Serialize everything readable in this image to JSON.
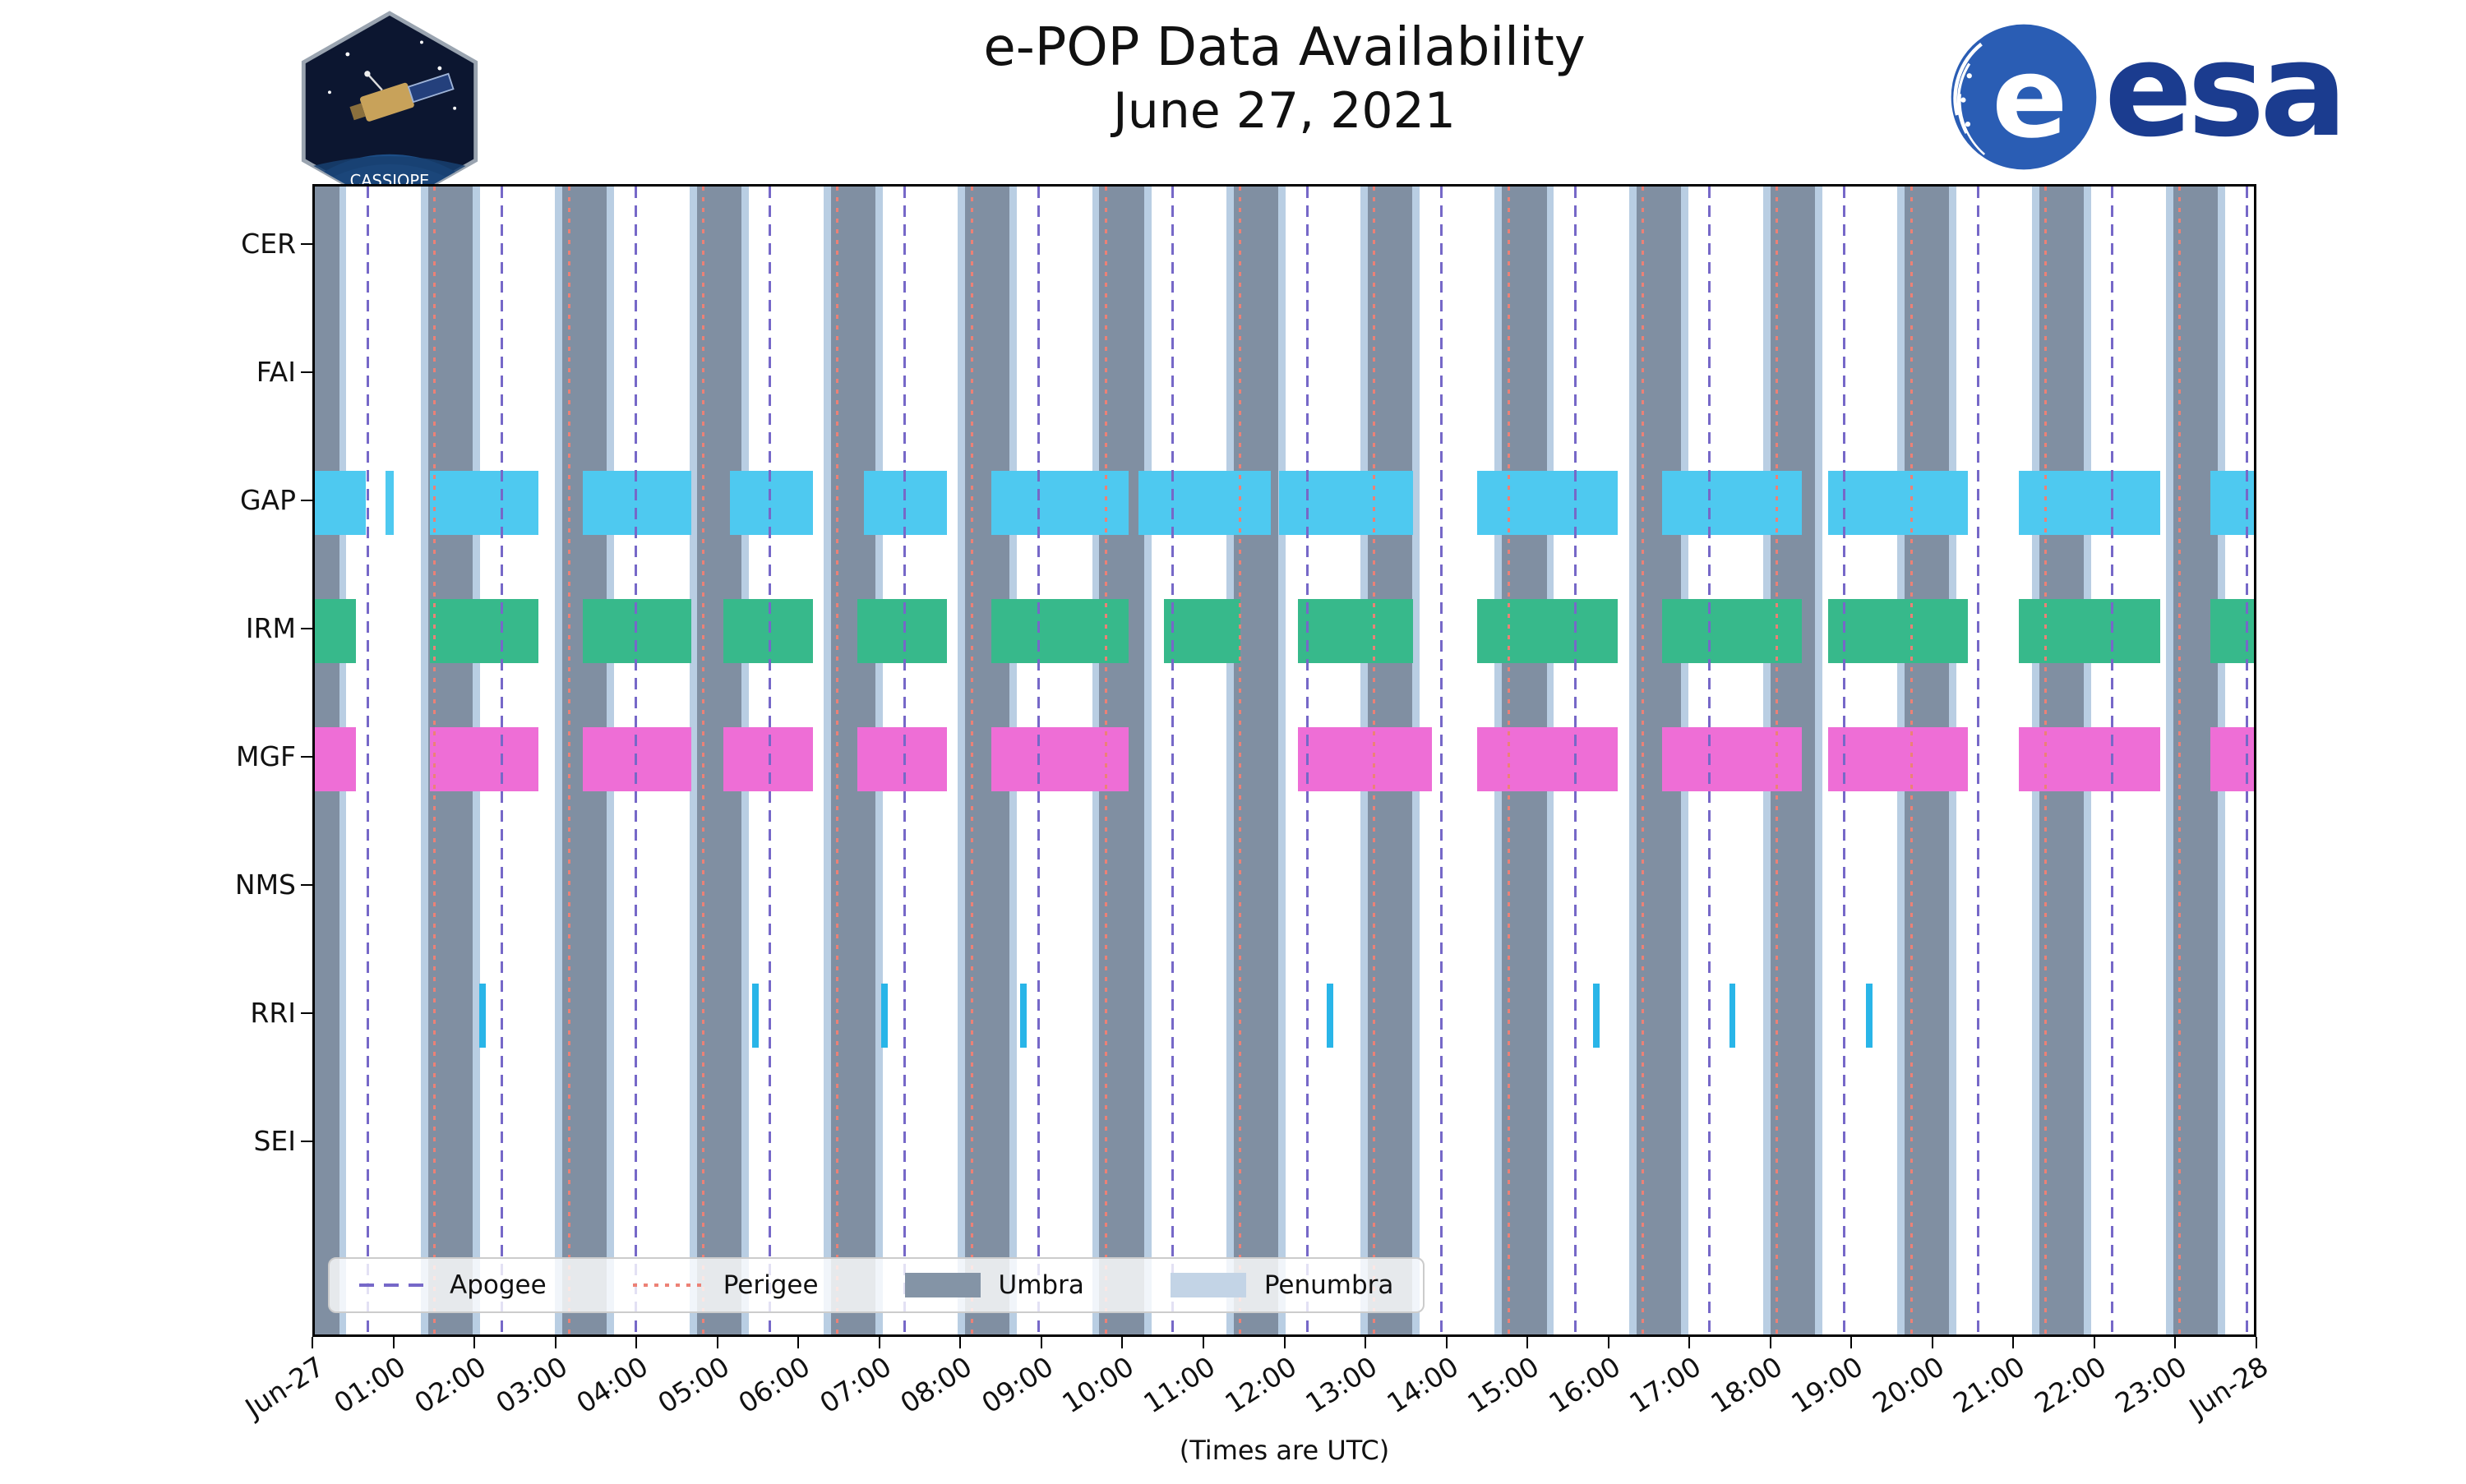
{
  "header": {
    "cassiope_text": "CASSIOPE",
    "esa_text": "esa",
    "esa_emblem_letter": "e"
  },
  "legend": [
    {
      "label": "Apogee",
      "swatch": "dashed-line",
      "color": "#7668c8"
    },
    {
      "label": "Perigee",
      "swatch": "dotted-line",
      "color": "#ec8176"
    },
    {
      "label": "Umbra",
      "swatch": "patch",
      "color": "#8494a6"
    },
    {
      "label": "Penumbra",
      "swatch": "patch",
      "color": "#c3d4e6"
    }
  ],
  "chart_data": {
    "type": "timeline",
    "title": "e-POP Data Availability",
    "subtitle": "June 27, 2021",
    "x_axis": {
      "label": "(Times are UTC)",
      "range_hours": [
        0,
        24
      ],
      "tick_labels": [
        "Jun-27",
        "01:00",
        "02:00",
        "03:00",
        "04:00",
        "05:00",
        "06:00",
        "07:00",
        "08:00",
        "09:00",
        "10:00",
        "11:00",
        "12:00",
        "13:00",
        "14:00",
        "15:00",
        "16:00",
        "17:00",
        "18:00",
        "19:00",
        "20:00",
        "21:00",
        "22:00",
        "23:00",
        "Jun-28"
      ]
    },
    "y_categories": [
      "CER",
      "FAI",
      "GAP",
      "IRM",
      "MGF",
      "NMS",
      "RRI",
      "SEI"
    ],
    "umbra_intervals_hours": [
      [
        0.0,
        0.3
      ],
      [
        1.4,
        1.95
      ],
      [
        3.057,
        3.607
      ],
      [
        4.714,
        5.264
      ],
      [
        6.371,
        6.921
      ],
      [
        8.029,
        8.579
      ],
      [
        9.686,
        10.236
      ],
      [
        11.343,
        11.893
      ],
      [
        13.0,
        13.55
      ],
      [
        14.657,
        15.207
      ],
      [
        16.314,
        16.864
      ],
      [
        17.971,
        18.521
      ],
      [
        19.629,
        20.179
      ],
      [
        21.286,
        21.836
      ],
      [
        22.943,
        23.493
      ]
    ],
    "penumbra_edge_width_hours": 0.09,
    "orbital_events": {
      "apogee_hours": [
        0.65,
        2.307,
        3.964,
        5.621,
        7.279,
        8.936,
        10.593,
        12.25,
        13.907,
        15.564,
        17.221,
        18.879,
        20.536,
        22.193,
        23.85
      ],
      "perigee_hours": [
        1.48,
        3.137,
        4.794,
        6.451,
        8.109,
        9.766,
        11.423,
        13.08,
        14.737,
        16.394,
        18.051,
        19.709,
        21.366,
        23.023
      ]
    },
    "availability_hours": {
      "CER": [],
      "FAI": [],
      "GAP": [
        [
          0.0,
          0.63
        ],
        [
          0.87,
          0.97
        ],
        [
          1.42,
          2.76
        ],
        [
          3.31,
          4.65
        ],
        [
          5.12,
          6.15
        ],
        [
          6.78,
          7.8
        ],
        [
          8.35,
          10.05
        ],
        [
          10.17,
          11.8
        ],
        [
          11.9,
          13.56
        ],
        [
          14.35,
          16.08
        ],
        [
          16.63,
          18.36
        ],
        [
          18.68,
          20.41
        ],
        [
          21.04,
          22.78
        ],
        [
          23.4,
          24.0
        ]
      ],
      "IRM": [
        [
          0.0,
          0.51
        ],
        [
          1.42,
          2.76
        ],
        [
          3.31,
          4.65
        ],
        [
          5.04,
          6.15
        ],
        [
          6.7,
          7.8
        ],
        [
          8.35,
          10.05
        ],
        [
          10.48,
          11.43
        ],
        [
          12.14,
          13.56
        ],
        [
          14.35,
          16.08
        ],
        [
          16.63,
          18.36
        ],
        [
          18.68,
          20.41
        ],
        [
          21.04,
          22.78
        ],
        [
          23.4,
          24.0
        ]
      ],
      "MGF": [
        [
          0.0,
          0.51
        ],
        [
          1.42,
          2.76
        ],
        [
          3.31,
          4.65
        ],
        [
          5.04,
          6.15
        ],
        [
          6.7,
          7.8
        ],
        [
          8.35,
          10.05
        ],
        [
          12.14,
          13.79
        ],
        [
          14.35,
          16.08
        ],
        [
          16.63,
          18.36
        ],
        [
          18.68,
          20.41
        ],
        [
          21.04,
          22.78
        ],
        [
          23.4,
          24.0
        ]
      ],
      "NMS": [],
      "RRI": [
        [
          2.03,
          2.11
        ],
        [
          5.4,
          5.48
        ],
        [
          6.99,
          7.07
        ],
        [
          8.71,
          8.79
        ],
        [
          12.49,
          12.57
        ],
        [
          15.78,
          15.86
        ],
        [
          17.46,
          17.54
        ],
        [
          19.15,
          19.23
        ]
      ],
      "SEI": []
    },
    "colors": {
      "GAP": "#4ec9f0",
      "IRM": "#37b98b",
      "MGF": "#ee6ed6",
      "RRI": "#29b5e8",
      "umbra": "#8494a6",
      "penumbra": "#c3d4e6",
      "apogee": "#7668c8",
      "perigee": "#ec8176"
    },
    "legend_position": "bottom-left-inside"
  }
}
